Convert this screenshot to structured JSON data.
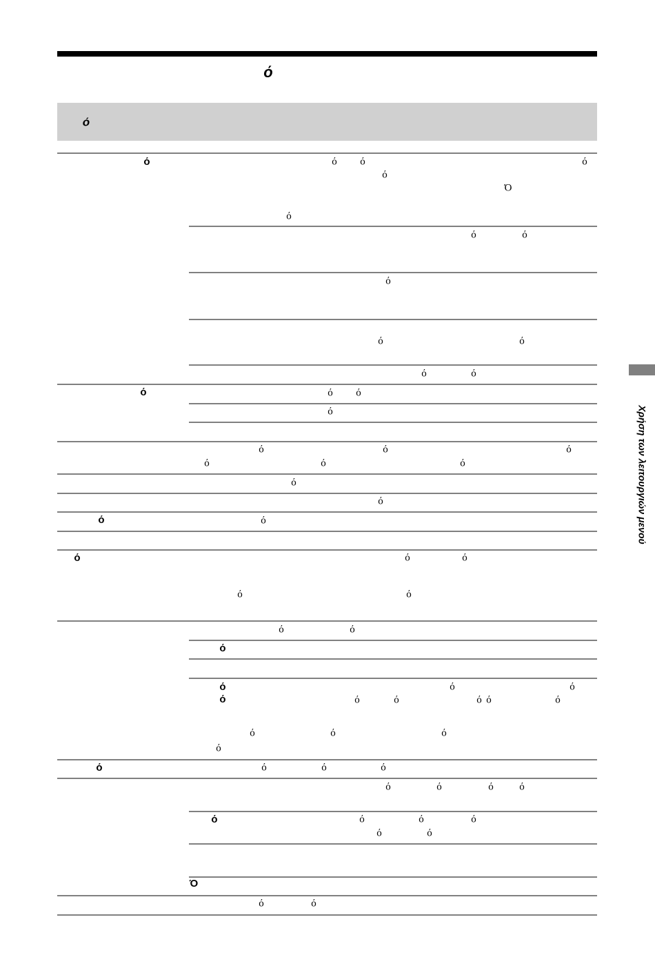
{
  "header": {
    "title": "ό"
  },
  "section": {
    "title": "ό"
  },
  "side_tab": "Χρήση των λειτουργιών μενού",
  "table": {
    "labels": [
      "ό",
      "ό",
      "ό",
      "ό",
      "ό",
      "ό",
      "ό",
      "ό",
      "ό",
      "Ό"
    ],
    "cells": [
      "ό",
      "ό",
      "ό",
      "ό",
      "Ό",
      "ό",
      "ό",
      "ό",
      "ό",
      "ό",
      "ό",
      "ό",
      "ό",
      "ό",
      "ό",
      "ό",
      "ό",
      "ό",
      "ό",
      "ό",
      "ό",
      "ό",
      "ό",
      "ό",
      "ό",
      "ό",
      "ό",
      "ό",
      "ό",
      "ό",
      "ό",
      "ό",
      "ό",
      "ό",
      "ό",
      "ό",
      "ό",
      "ό",
      "ό",
      "ό",
      "ό",
      "ό",
      "ό",
      "ό",
      "ό",
      "ό",
      "ό",
      "ό",
      "ό",
      "ό",
      "ό",
      "ό",
      "ό",
      "ό",
      "ό",
      "ό"
    ]
  }
}
